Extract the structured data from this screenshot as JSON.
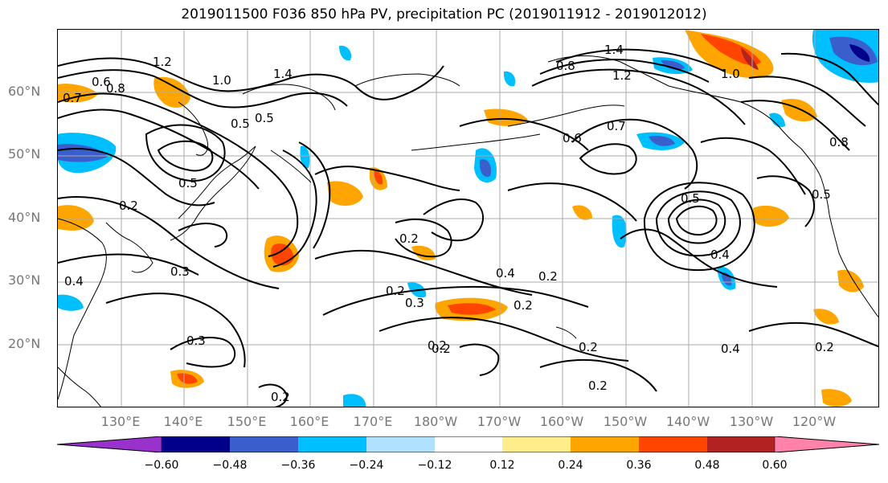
{
  "title": "2019011500 F036 850 hPa PV, precipitation PC (2019011912 - 2019012012)",
  "lat_labels": [
    "60°N",
    "50°N",
    "40°N",
    "30°N",
    "20°N"
  ],
  "lon_labels": [
    "130°E",
    "140°E",
    "150°E",
    "160°E",
    "170°E",
    "180°W",
    "170°W",
    "160°W",
    "150°W",
    "140°W",
    "130°W",
    "120°W"
  ],
  "colorbar": {
    "ticks": [
      "−0.60",
      "−0.48",
      "−0.36",
      "−0.24",
      "−0.12",
      "0.12",
      "0.24",
      "0.36",
      "0.48",
      "0.60"
    ],
    "colors": [
      "#9932cc",
      "#00008b",
      "#3a5fcd",
      "#00bfff",
      "#b0e2ff",
      "#ffffff",
      "#ffec8b",
      "#ffa500",
      "#ff4500",
      "#b22222",
      "#ff82ab"
    ]
  },
  "contour_labels": [
    "1.2",
    "0.6",
    "0.8",
    "0.7",
    "1.0",
    "0.5",
    "1.4",
    "0.4",
    "0.2",
    "0.3",
    "0.5",
    "0.2",
    "0.3",
    "0.2",
    "0.2",
    "0.4",
    "0.2",
    "0.2",
    "0.6",
    "0.7",
    "0.8",
    "0.5",
    "0.4",
    "0.2",
    "1.0",
    "0.2",
    "0.4",
    "0.2",
    "0.2",
    "0.3",
    "0.2",
    "1.2",
    "1.4",
    "0.8",
    "0.5",
    "0.5"
  ]
}
